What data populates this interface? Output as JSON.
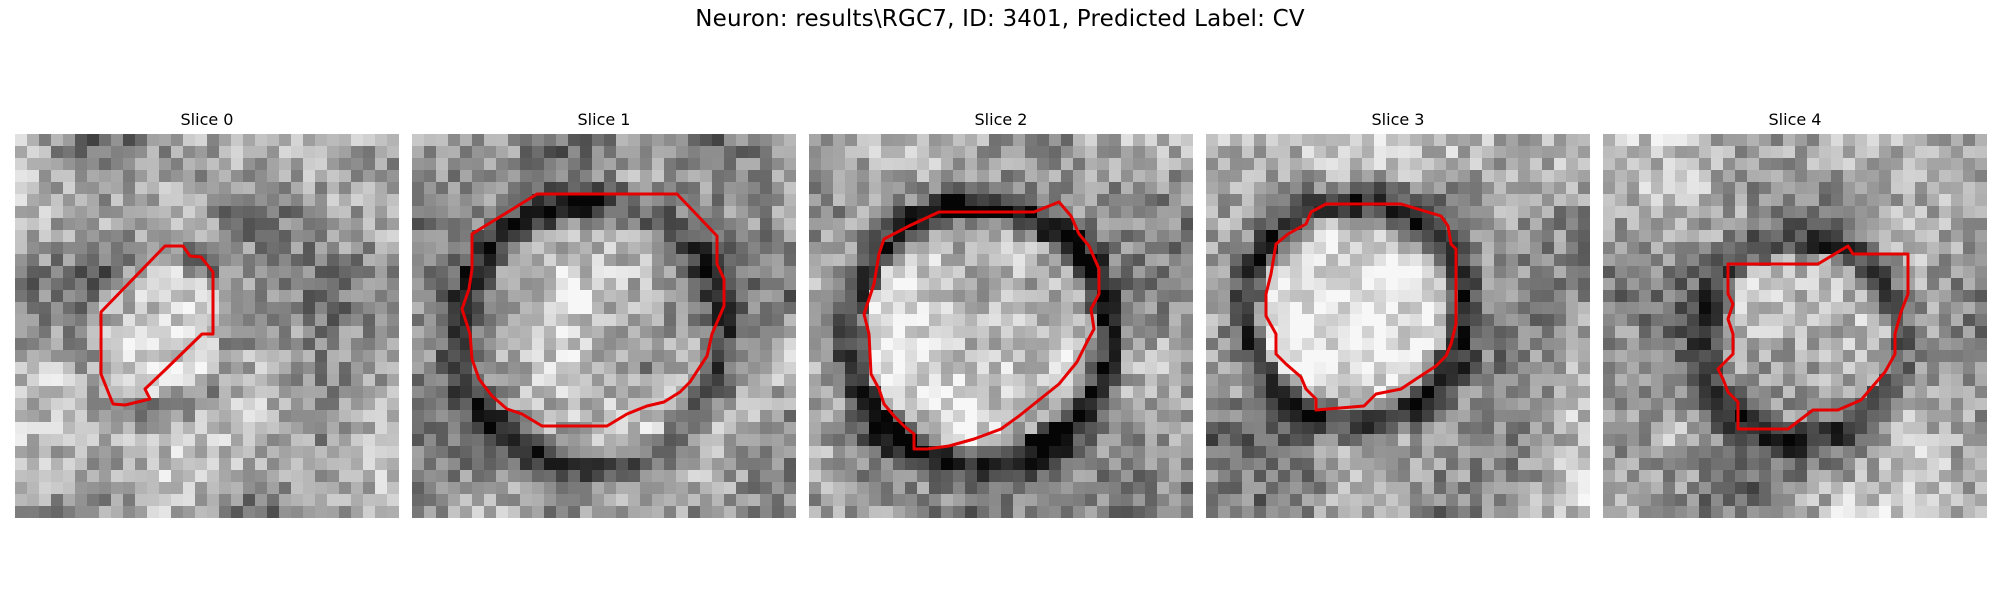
{
  "figure": {
    "title": "Neuron: results\\RGC7, ID: 3401, Predicted Label: CV"
  },
  "panels": [
    {
      "title": "Slice 0",
      "seed": 11,
      "ring_strength": 0.18,
      "bright_center": 0.2
    },
    {
      "title": "Slice 1",
      "seed": 23,
      "ring_strength": 0.38,
      "bright_center": 0.15
    },
    {
      "title": "Slice 2",
      "seed": 37,
      "ring_strength": 0.55,
      "bright_center": 0.35
    },
    {
      "title": "Slice 3",
      "seed": 51,
      "ring_strength": 0.5,
      "bright_center": 0.3
    },
    {
      "title": "Slice 4",
      "seed": 73,
      "ring_strength": 0.35,
      "bright_center": 0.3
    }
  ],
  "colors": {
    "contour": "#e60000",
    "background": "#ffffff"
  }
}
